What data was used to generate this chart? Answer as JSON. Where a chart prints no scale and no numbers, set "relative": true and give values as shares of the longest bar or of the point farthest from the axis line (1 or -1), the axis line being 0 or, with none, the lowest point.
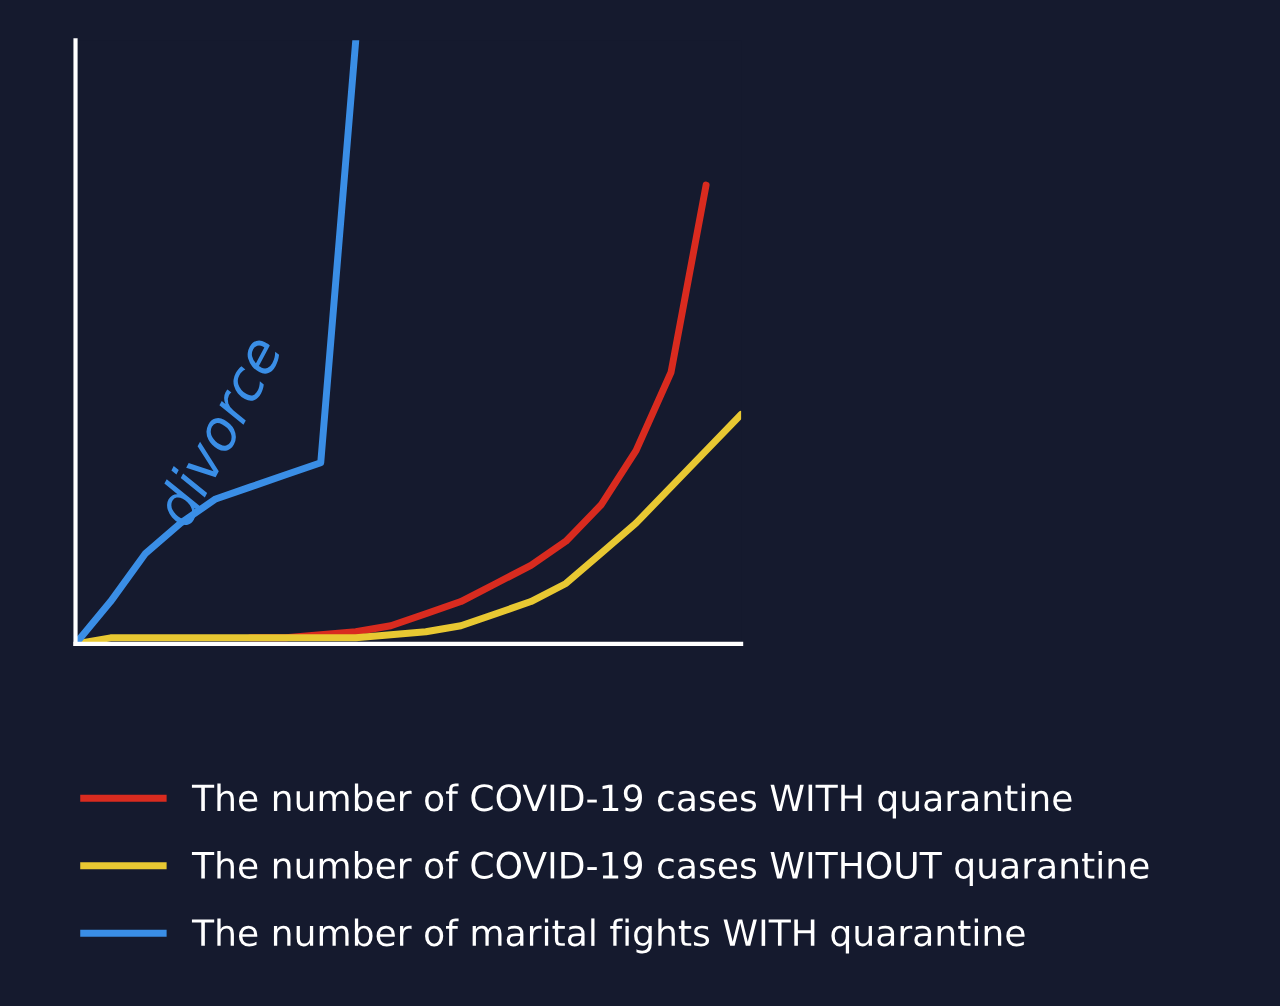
{
  "chart_data": {
    "type": "line",
    "relative": true,
    "legend": "bottom",
    "tick_labels": false,
    "marker": "none",
    "line_style": "solid",
    "categories": [
      null,
      null,
      null,
      null,
      null,
      null,
      null,
      null,
      null,
      null,
      null,
      null,
      null,
      null,
      null,
      null,
      null,
      null,
      null,
      null
    ],
    "series": [
      {
        "name": "The number of COVID-19 cases WITH quarantine",
        "color": "#d92b1f",
        "values": [
          null,
          null,
          null,
          null,
          null,
          0.01,
          0.01,
          0.015,
          0.02,
          0.03,
          0.05,
          0.07,
          0.1,
          0.13,
          0.17,
          0.23,
          0.32,
          0.45,
          0.76,
          null
        ]
      },
      {
        "name": "The number of COVID-19 cases WITHOUT quarantine",
        "color": "#e8c832",
        "values": [
          0,
          0.01,
          0.01,
          0.01,
          0.01,
          0.01,
          0.01,
          0.01,
          0.01,
          0.015,
          0.02,
          0.03,
          0.05,
          0.07,
          0.1,
          0.15,
          0.2,
          0.26,
          0.32,
          0.38
        ]
      },
      {
        "name": "The number of marital fights WITH quarantine",
        "color": "#3a8ee6",
        "values": [
          0,
          0.07,
          0.15,
          0.2,
          0.24,
          0.26,
          0.28,
          0.3,
          1.0,
          null,
          null,
          null,
          null,
          null,
          null,
          null,
          null,
          null,
          null,
          null
        ]
      }
    ],
    "annotations": [
      "divorce"
    ]
  }
}
